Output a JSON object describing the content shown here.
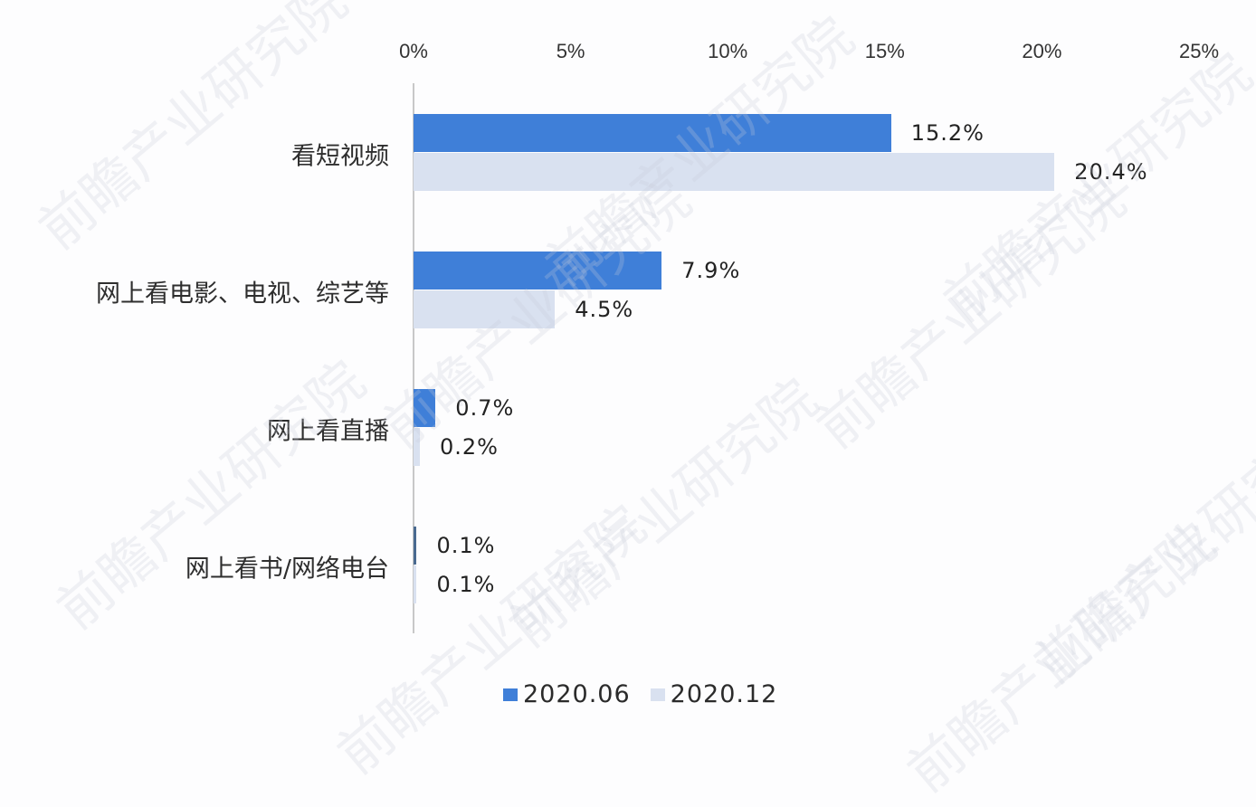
{
  "chart_data": {
    "type": "bar",
    "orientation": "horizontal",
    "title": "",
    "xlabel": "",
    "ylabel": "",
    "xlim": [
      0,
      25
    ],
    "x_ticks": [
      "0%",
      "5%",
      "10%",
      "15%",
      "20%",
      "25%"
    ],
    "categories": [
      "看短视频",
      "网上看电影、电视、综艺等",
      "网上看直播",
      "网上看书/网络电台"
    ],
    "series": [
      {
        "name": "2020.06",
        "color": "#3f7fd8",
        "values": [
          15.2,
          7.9,
          0.7,
          0.1
        ],
        "labels": [
          "15.2%",
          "7.9%",
          "0.7%",
          "0.1%"
        ]
      },
      {
        "name": "2020.12",
        "color": "#d9e1f0",
        "values": [
          20.4,
          4.5,
          0.2,
          0.1
        ],
        "labels": [
          "20.4%",
          "4.5%",
          "0.2%",
          "0.1%"
        ]
      }
    ],
    "legend_position": "bottom",
    "grid": false
  },
  "watermark": "前瞻产业研究院"
}
